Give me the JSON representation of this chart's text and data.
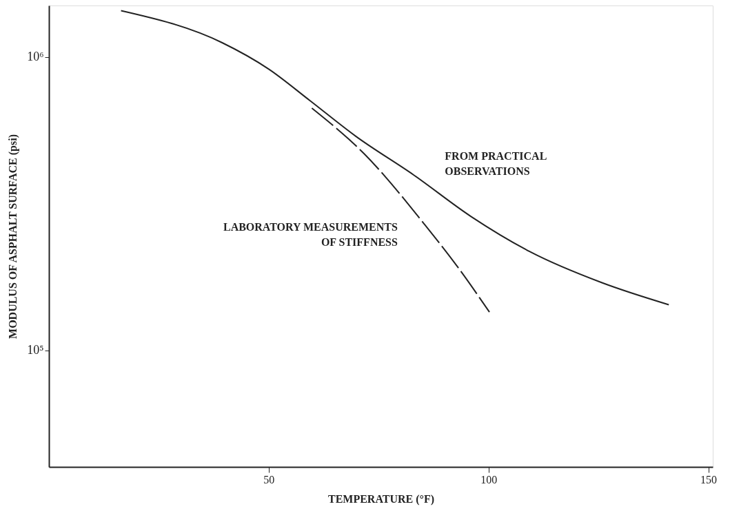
{
  "chart_data": {
    "type": "line",
    "xlabel": "TEMPERATURE (°F)",
    "ylabel": "MODULUS OF ASPHALT SURFACE (psi)",
    "log": "y",
    "marker": "none",
    "xlim": [
      0,
      151
    ],
    "xticks": [
      50,
      100,
      150
    ],
    "ylim": [
      40000,
      1500000
    ],
    "yticks": [
      {
        "value": 100000,
        "label": "10⁵"
      },
      {
        "value": 1000000,
        "label": "10⁶"
      }
    ],
    "series": [
      {
        "color": "#222222",
        "line_style": "solid",
        "x": [
          16.4,
          39.4,
          50,
          59.4,
          69.8,
          83,
          96,
          109.4,
          125.8,
          141
        ],
        "values": [
          1440000,
          1120000,
          910000,
          710000,
          537000,
          396000,
          286000,
          217000,
          170000,
          143000
        ]
      },
      {
        "color": "#222222",
        "line_style": "dashed",
        "x": [
          59.8,
          71.7,
          85.6,
          92.8,
          100.2
        ],
        "values": [
          670000,
          468000,
          267000,
          194000,
          135000
        ]
      }
    ],
    "annotations": [
      {
        "text": "FROM PRACTICAL\nOBSERVATIONS",
        "x": 83,
        "y": 396000
      },
      {
        "text": "LABORATORY MEASUREMENTS\nOF STIFFNESS",
        "x": 85.6,
        "y": 267000
      }
    ]
  }
}
